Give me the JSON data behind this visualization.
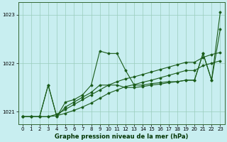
{
  "background_color": "#c8eef0",
  "grid_color": "#99ccbb",
  "line_color": "#1a5c1a",
  "title": "Graphe pression niveau de la mer (hPa)",
  "ylim": [
    1020.75,
    1023.25
  ],
  "xlim": [
    -0.5,
    23.5
  ],
  "yticks": [
    1021,
    1022,
    1023
  ],
  "xticks": [
    0,
    1,
    2,
    3,
    4,
    5,
    6,
    7,
    8,
    9,
    10,
    11,
    12,
    13,
    14,
    15,
    16,
    17,
    18,
    19,
    20,
    21,
    22,
    23
  ],
  "series1": [
    1020.9,
    1020.9,
    1020.9,
    1021.55,
    1020.9,
    1021.2,
    1021.25,
    1021.35,
    1021.55,
    1022.25,
    1022.2,
    1022.2,
    1021.85,
    1021.55,
    1021.55,
    1021.58,
    1021.6,
    1021.62,
    1021.62,
    1021.65,
    1021.65,
    1022.2,
    1021.65,
    1023.05
  ],
  "series2": [
    1020.9,
    1020.9,
    1020.9,
    1021.55,
    1020.9,
    1021.1,
    1021.2,
    1021.3,
    1021.4,
    1021.55,
    1021.55,
    1021.55,
    1021.5,
    1021.5,
    1021.52,
    1021.55,
    1021.57,
    1021.6,
    1021.62,
    1021.65,
    1021.65,
    1022.2,
    1021.65,
    1022.7
  ],
  "series3": [
    1020.9,
    1020.9,
    1020.9,
    1020.9,
    1020.95,
    1021.05,
    1021.15,
    1021.25,
    1021.35,
    1021.45,
    1021.55,
    1021.62,
    1021.68,
    1021.72,
    1021.77,
    1021.82,
    1021.87,
    1021.92,
    1021.97,
    1022.02,
    1022.02,
    1022.12,
    1022.18,
    1022.22
  ],
  "series4": [
    1020.9,
    1020.9,
    1020.9,
    1020.9,
    1020.92,
    1020.97,
    1021.03,
    1021.1,
    1021.18,
    1021.28,
    1021.38,
    1021.45,
    1021.52,
    1021.56,
    1021.61,
    1021.65,
    1021.7,
    1021.75,
    1021.8,
    1021.85,
    1021.85,
    1021.95,
    1022.0,
    1022.05
  ],
  "ylabel_color": "#003300",
  "tick_fontsize": 5,
  "xlabel_fontsize": 6
}
